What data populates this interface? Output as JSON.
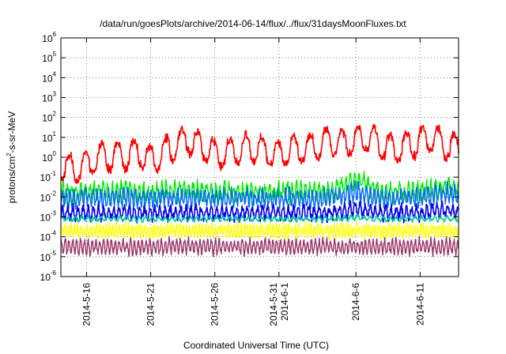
{
  "chart_data": {
    "type": "line",
    "title": "/data/run/goesPlots/archive/2014-06-14/flux/../flux/31daysMoonFluxes.txt",
    "xlabel": "Coordinated Universal Time (UTC)",
    "ylabel_parts": {
      "pre": "protons/cm",
      "sup": "2",
      "post": "-s-sr-MeV"
    },
    "y_scale": "log",
    "ylim": [
      1e-06,
      1000000.0
    ],
    "y_ticks": [
      {
        "value": 1e-06,
        "base": "10",
        "exp": "-6"
      },
      {
        "value": 1e-05,
        "base": "10",
        "exp": "-5"
      },
      {
        "value": 0.0001,
        "base": "10",
        "exp": "-4"
      },
      {
        "value": 0.001,
        "base": "10",
        "exp": "-3"
      },
      {
        "value": 0.01,
        "base": "10",
        "exp": "-2"
      },
      {
        "value": 0.1,
        "base": "10",
        "exp": "-1"
      },
      {
        "value": 1,
        "base": "10",
        "exp": "0"
      },
      {
        "value": 10.0,
        "base": "10",
        "exp": "1"
      },
      {
        "value": 100.0,
        "base": "10",
        "exp": "2"
      },
      {
        "value": 1000.0,
        "base": "10",
        "exp": "3"
      },
      {
        "value": 10000.0,
        "base": "10",
        "exp": "4"
      },
      {
        "value": 100000.0,
        "base": "10",
        "exp": "5"
      },
      {
        "value": 1000000.0,
        "base": "10",
        "exp": "6"
      }
    ],
    "xlim": [
      "2014-05-14",
      "2014-06-14"
    ],
    "x_ticks": [
      {
        "date": "2014-05-16",
        "lines": [
          "2014-5-16"
        ]
      },
      {
        "date": "2014-05-21",
        "lines": [
          "2014-5-21"
        ]
      },
      {
        "date": "2014-05-26",
        "lines": [
          "2014-5-26"
        ]
      },
      {
        "date": "2014-05-31",
        "lines": [
          "2014-5-31",
          "2014-6-1"
        ]
      },
      {
        "date": "2014-06-06",
        "lines": [
          "2014-6-6"
        ]
      },
      {
        "date": "2014-06-11",
        "lines": [
          "2014-6-11"
        ]
      }
    ],
    "grid": true,
    "legend": "none",
    "series": [
      {
        "color": "#ff0000",
        "width": 1.6,
        "level_exp": [
          -0.5,
          -0.6,
          -0.4,
          0.0,
          0.0,
          0.1,
          0.3,
          -0.2,
          0.3,
          0.6,
          0.9,
          0.5,
          0.2,
          0.2,
          0.4,
          0.5,
          0.3,
          0.1,
          0.4,
          0.4,
          0.6,
          0.9,
          0.7,
          0.8,
          1.0,
          0.6,
          0.4,
          0.6,
          0.8,
          1.0,
          0.6,
          0.4
        ],
        "amp_exp": 0.8,
        "period_days": 1.25,
        "noise_exp": 0.15
      },
      {
        "color": "#00ee00",
        "width": 1.4,
        "level_exp": [
          -1.8,
          -1.8,
          -1.7,
          -1.7,
          -1.8,
          -1.7,
          -1.8,
          -1.8,
          -1.7,
          -1.7,
          -1.7,
          -1.7,
          -1.8,
          -1.7,
          -1.8,
          -1.8,
          -1.8,
          -1.7,
          -1.8,
          -1.7,
          -1.7,
          -1.8,
          -1.4,
          -1.1,
          -1.4,
          -1.8,
          -1.8,
          -1.8,
          -1.7,
          -1.6,
          -1.5,
          -1.6
        ],
        "amp_exp": 0.45,
        "period_days": 0.35,
        "noise_exp": 0.25
      },
      {
        "color": "#0066ff",
        "width": 1.4,
        "level_exp": [
          -2.1,
          -2.1,
          -2.0,
          -2.1,
          -2.1,
          -2.0,
          -2.1,
          -2.1,
          -2.0,
          -2.1,
          -2.1,
          -2.0,
          -2.1,
          -2.1,
          -2.0,
          -2.1,
          -2.1,
          -2.1,
          -2.0,
          -2.1,
          -2.1,
          -2.0,
          -1.9,
          -1.7,
          -1.9,
          -2.1,
          -2.1,
          -2.0,
          -2.0,
          -1.9,
          -1.8,
          -1.9
        ],
        "amp_exp": 0.45,
        "period_days": 0.3,
        "noise_exp": 0.2
      },
      {
        "color": "#0000ee",
        "width": 1.6,
        "level_exp": [
          -2.8,
          -2.8,
          -2.8,
          -2.8,
          -2.8,
          -2.8,
          -2.8,
          -2.8,
          -2.8,
          -2.8,
          -2.8,
          -2.8,
          -2.8,
          -2.8,
          -2.8,
          -2.8,
          -2.8,
          -2.8,
          -2.8,
          -2.8,
          -2.8,
          -2.8,
          -2.7,
          -2.6,
          -2.7,
          -2.8,
          -2.8,
          -2.8,
          -2.8,
          -2.7,
          -2.7,
          -2.7
        ],
        "amp_exp": 0.35,
        "period_days": 0.4,
        "noise_exp": 0.2
      },
      {
        "color": "#00c8a0",
        "width": 1.4,
        "level_exp": [
          -3.1,
          -3.1,
          -3.1,
          -3.1,
          -3.1,
          -3.1,
          -3.1,
          -3.1,
          -3.1,
          -3.1,
          -3.1,
          -3.1,
          -3.1,
          -3.1,
          -3.1,
          -3.1,
          -3.1,
          -3.1,
          -3.1,
          -3.1,
          -3.1,
          -3.1,
          -3.1,
          -3.0,
          -3.1,
          -3.1,
          -3.1,
          -3.1,
          -3.1,
          -3.1,
          -3.1,
          -3.1
        ],
        "amp_exp": 0.12,
        "period_days": 0.5,
        "noise_exp": 0.08
      },
      {
        "color": "#ffff00",
        "width": 1.4,
        "level_exp": [
          -3.7,
          -3.7,
          -3.7,
          -3.7,
          -3.7,
          -3.7,
          -3.7,
          -3.7,
          -3.7,
          -3.7,
          -3.7,
          -3.7,
          -3.7,
          -3.7,
          -3.7,
          -3.7,
          -3.7,
          -3.7,
          -3.7,
          -3.7,
          -3.7,
          -3.7,
          -3.7,
          -3.7,
          -3.7,
          -3.7,
          -3.7,
          -3.7,
          -3.7,
          -3.7,
          -3.7,
          -3.7
        ],
        "amp_exp": 0.35,
        "period_days": 0.25,
        "noise_exp": 0.15
      },
      {
        "color": "#993366",
        "width": 1.4,
        "level_exp": [
          -4.5,
          -4.5,
          -4.5,
          -4.5,
          -4.5,
          -4.5,
          -4.5,
          -4.5,
          -4.5,
          -4.5,
          -4.5,
          -4.5,
          -4.5,
          -4.5,
          -4.5,
          -4.5,
          -4.5,
          -4.5,
          -4.5,
          -4.5,
          -4.5,
          -4.5,
          -4.5,
          -4.5,
          -4.5,
          -4.5,
          -4.5,
          -4.5,
          -4.5,
          -4.5,
          -4.5,
          -4.5
        ],
        "amp_exp": 0.4,
        "period_days": 0.3,
        "noise_exp": 0.15
      }
    ]
  }
}
